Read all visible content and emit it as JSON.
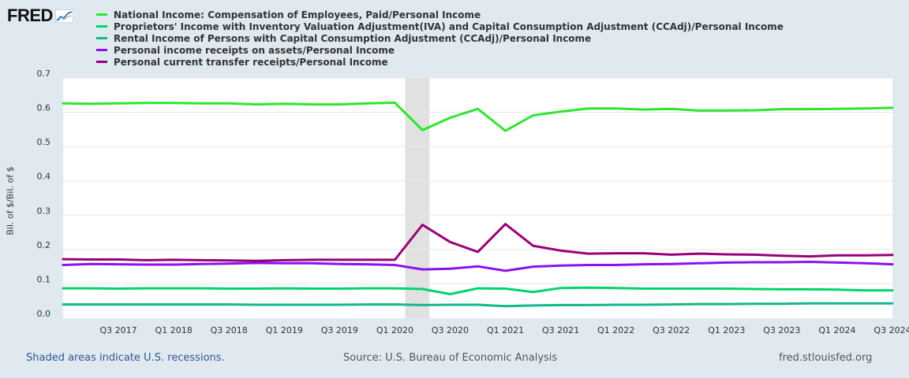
{
  "header": {
    "logo_text": "FRED"
  },
  "chart_data": {
    "type": "line",
    "ylabel": "Bil. of $/Bil. of $",
    "xlabel": "",
    "ylim": [
      0,
      0.7
    ],
    "yticks": [
      "0.0",
      "0.1",
      "0.2",
      "0.3",
      "0.4",
      "0.5",
      "0.6",
      "0.7"
    ],
    "x": [
      "Q1 2017",
      "Q2 2017",
      "Q3 2017",
      "Q4 2017",
      "Q1 2018",
      "Q2 2018",
      "Q3 2018",
      "Q4 2018",
      "Q1 2019",
      "Q2 2019",
      "Q3 2019",
      "Q4 2019",
      "Q1 2020",
      "Q2 2020",
      "Q3 2020",
      "Q4 2020",
      "Q1 2021",
      "Q2 2021",
      "Q3 2021",
      "Q4 2021",
      "Q1 2022",
      "Q2 2022",
      "Q3 2022",
      "Q4 2022",
      "Q1 2023",
      "Q2 2023",
      "Q3 2023",
      "Q4 2023",
      "Q1 2024",
      "Q2 2024",
      "Q3 2024"
    ],
    "xtick_labels": [
      "Q3 2017",
      "Q1 2018",
      "Q3 2018",
      "Q1 2019",
      "Q3 2019",
      "Q1 2020",
      "Q3 2020",
      "Q1 2021",
      "Q3 2021",
      "Q1 2022",
      "Q3 2022",
      "Q1 2023",
      "Q3 2023",
      "Q1 2024",
      "Q3 2024"
    ],
    "recession": {
      "start": "Q1 2020",
      "end": "Q2 2020"
    },
    "series": [
      {
        "name": "National Income: Compensation of Employees, Paid/Personal Income",
        "color": "#2ee62e",
        "values": [
          0.626,
          0.625,
          0.626,
          0.627,
          0.627,
          0.626,
          0.626,
          0.623,
          0.625,
          0.623,
          0.623,
          0.626,
          0.628,
          0.548,
          0.584,
          0.61,
          0.546,
          0.591,
          0.602,
          0.611,
          0.611,
          0.608,
          0.61,
          0.605,
          0.605,
          0.606,
          0.609,
          0.609,
          0.61,
          0.611,
          0.613
        ]
      },
      {
        "name": "Proprietors' Income with Inventory Valuation Adjustment(IVA) and Capital Consumption Adjustment (CCAdj)/Personal Income",
        "color": "#00d56b",
        "values": [
          0.087,
          0.087,
          0.086,
          0.087,
          0.087,
          0.087,
          0.086,
          0.086,
          0.087,
          0.086,
          0.086,
          0.087,
          0.087,
          0.085,
          0.07,
          0.087,
          0.086,
          0.076,
          0.088,
          0.089,
          0.088,
          0.086,
          0.086,
          0.086,
          0.086,
          0.085,
          0.084,
          0.084,
          0.083,
          0.081,
          0.081
        ]
      },
      {
        "name": "Rental Income of Persons with Capital Consumption Adjustment (CCAdj)/Personal Income",
        "color": "#12b88e",
        "values": [
          0.04,
          0.04,
          0.04,
          0.04,
          0.04,
          0.04,
          0.04,
          0.039,
          0.039,
          0.039,
          0.039,
          0.04,
          0.04,
          0.038,
          0.039,
          0.039,
          0.035,
          0.037,
          0.038,
          0.038,
          0.039,
          0.039,
          0.04,
          0.041,
          0.041,
          0.042,
          0.042,
          0.043,
          0.043,
          0.043,
          0.043
        ]
      },
      {
        "name": "Personal income receipts on assets/Personal Income",
        "color": "#8a12ee",
        "values": [
          0.155,
          0.158,
          0.157,
          0.156,
          0.156,
          0.158,
          0.159,
          0.161,
          0.16,
          0.16,
          0.158,
          0.157,
          0.155,
          0.142,
          0.144,
          0.151,
          0.138,
          0.15,
          0.153,
          0.155,
          0.155,
          0.157,
          0.158,
          0.16,
          0.162,
          0.163,
          0.163,
          0.164,
          0.162,
          0.16,
          0.157
        ]
      },
      {
        "name": "Personal current transfer receipts/Personal Income",
        "color": "#990077",
        "values": [
          0.172,
          0.171,
          0.171,
          0.169,
          0.17,
          0.169,
          0.168,
          0.167,
          0.169,
          0.17,
          0.17,
          0.17,
          0.17,
          0.272,
          0.222,
          0.193,
          0.274,
          0.211,
          0.197,
          0.188,
          0.189,
          0.189,
          0.185,
          0.188,
          0.186,
          0.185,
          0.182,
          0.18,
          0.183,
          0.183,
          0.184
        ]
      }
    ]
  },
  "footer": {
    "recession_note": "Shaded areas indicate U.S. recessions.",
    "source": "Source: U.S. Bureau of Economic Analysis",
    "site": "fred.stlouisfed.org"
  },
  "colors": {
    "background": "#e1e9f0",
    "plot_background": "#ffffff",
    "recession_shade": "#e1e1e1",
    "grid": "#e6e6e6"
  }
}
